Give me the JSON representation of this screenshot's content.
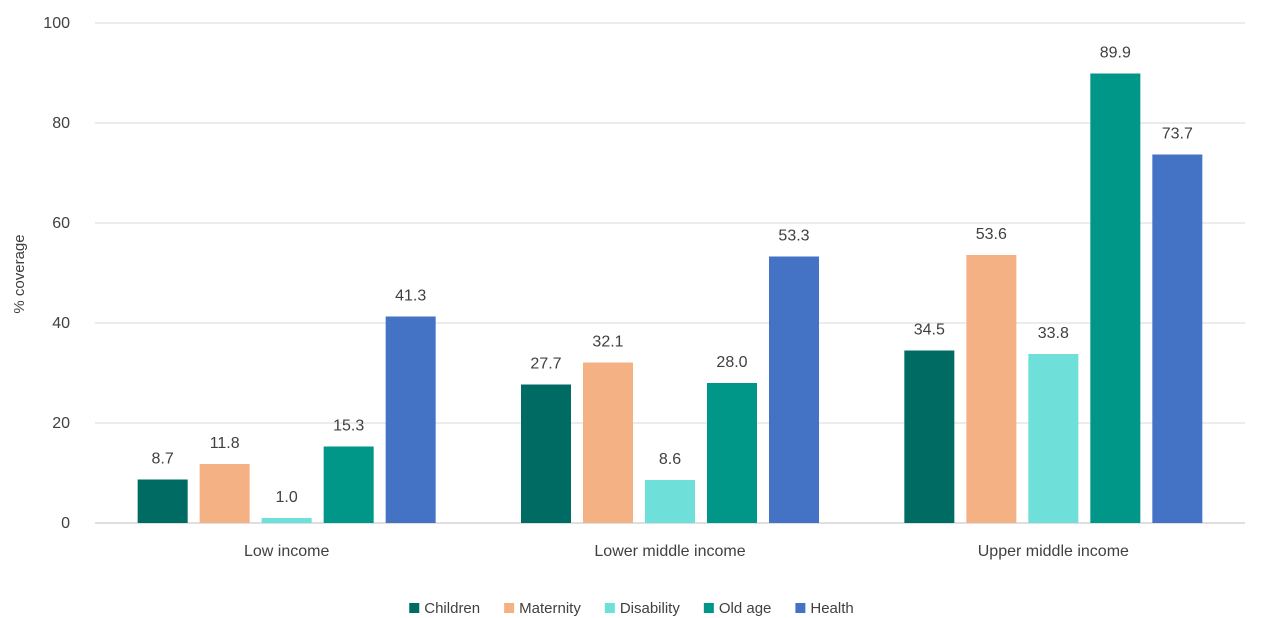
{
  "chart_data": {
    "type": "bar",
    "title": "",
    "xlabel": "",
    "ylabel": "% coverage",
    "ylim": [
      0,
      100
    ],
    "yticks": [
      0,
      20,
      40,
      60,
      80,
      100
    ],
    "grid": true,
    "legend_position": "bottom",
    "categories": [
      "Low income",
      "Lower middle income",
      "Upper middle income"
    ],
    "series": [
      {
        "name": "Children",
        "color": "#006b63",
        "values": [
          8.7,
          27.7,
          34.5
        ],
        "labels": [
          "8.7",
          "27.7",
          "34.5"
        ]
      },
      {
        "name": "Maternity",
        "color": "#f4b183",
        "values": [
          11.8,
          32.1,
          53.6
        ],
        "labels": [
          "11.8",
          "32.1",
          "53.6"
        ]
      },
      {
        "name": "Disability",
        "color": "#6fdfd9",
        "values": [
          1.0,
          8.6,
          33.8
        ],
        "labels": [
          "1.0",
          "8.6",
          "33.8"
        ]
      },
      {
        "name": "Old age",
        "color": "#009688",
        "values": [
          15.3,
          28.0,
          89.9
        ],
        "labels": [
          "15.3",
          "28.0",
          "89.9"
        ]
      },
      {
        "name": "Health",
        "color": "#4472c4",
        "values": [
          41.3,
          53.3,
          73.7
        ],
        "labels": [
          "41.3",
          "53.3",
          "73.7"
        ]
      }
    ]
  }
}
